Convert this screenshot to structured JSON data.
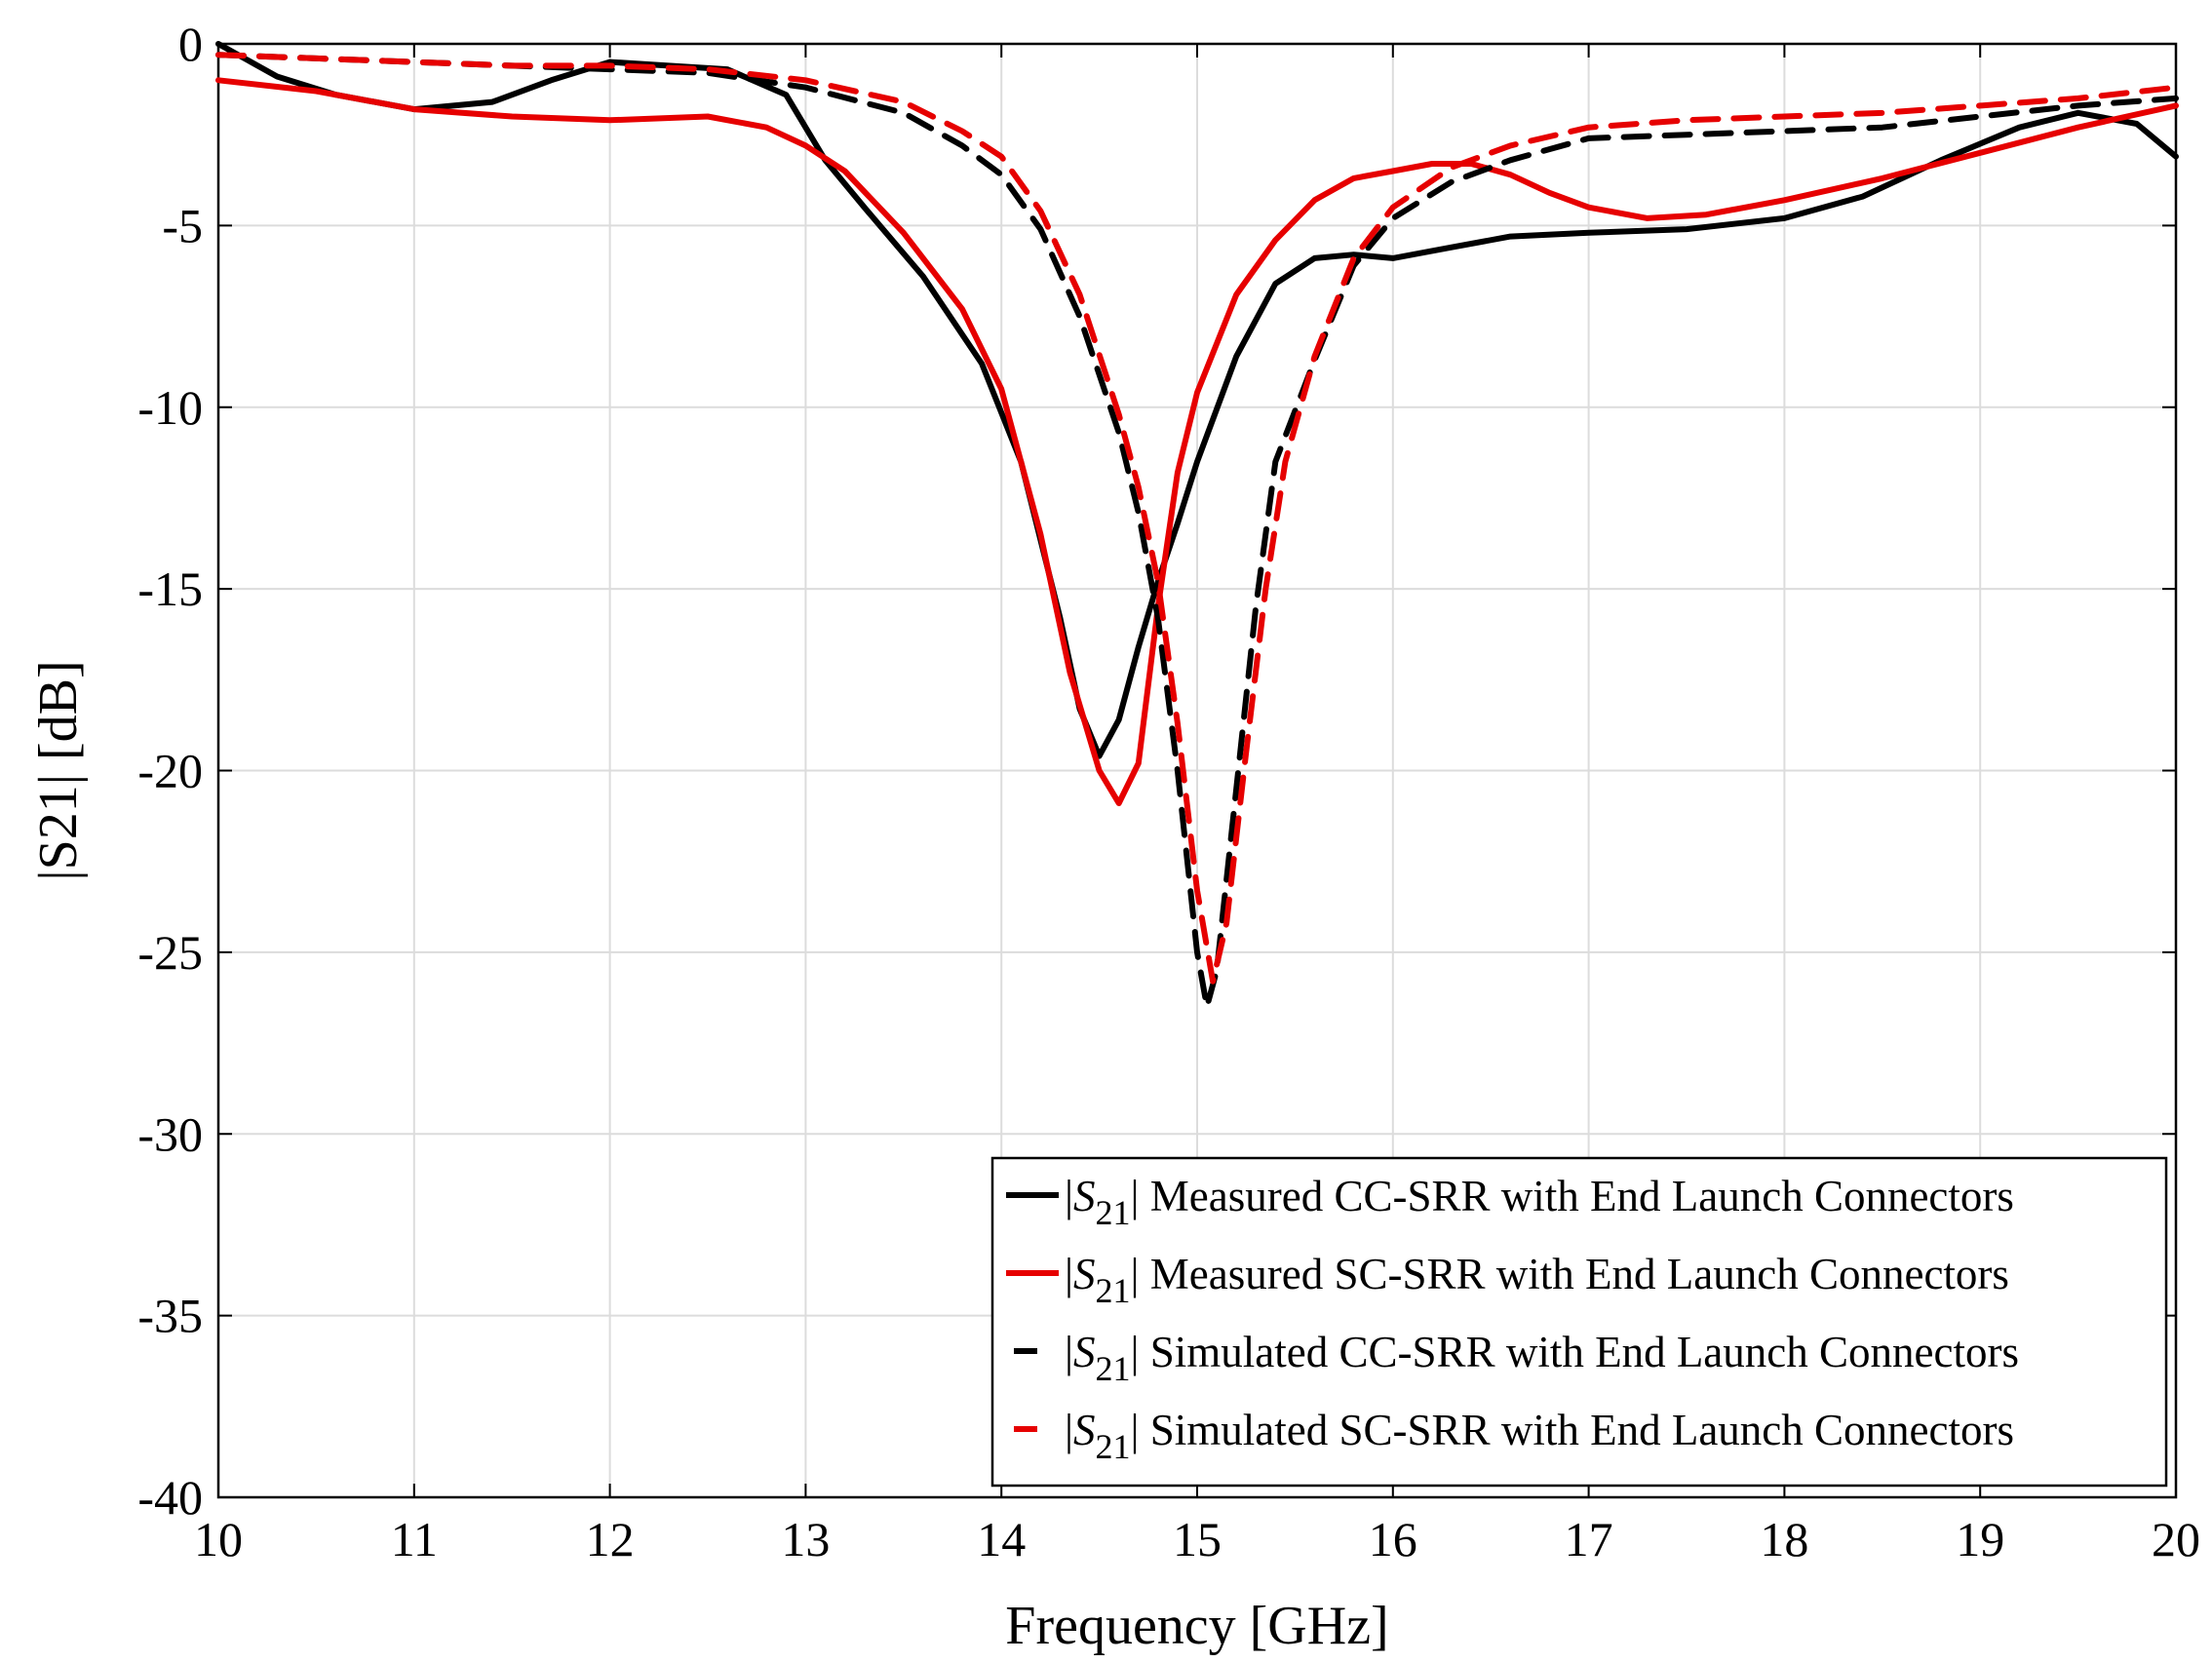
{
  "chart_data": {
    "type": "line",
    "title": "",
    "xlabel": "Frequency [GHz]",
    "ylabel": "|S21| [dB]",
    "xlim": [
      10,
      20
    ],
    "ylim": [
      -40,
      0
    ],
    "xticks": [
      10,
      11,
      12,
      13,
      14,
      15,
      16,
      17,
      18,
      19,
      20
    ],
    "yticks": [
      0,
      -5,
      -10,
      -15,
      -20,
      -25,
      -30,
      -35,
      -40
    ],
    "grid": true,
    "legend_position": "bottom-right",
    "series": [
      {
        "name": "|S21| Measured CC-SRR with End Launch Connectors",
        "legend_pre": "|",
        "legend_sym": "S",
        "legend_sub": "21",
        "legend_post": "| Measured CC-SRR with End Launch Connectors",
        "color": "#000000",
        "dash": "solid",
        "x": [
          10.0,
          10.3,
          10.6,
          11.0,
          11.4,
          11.7,
          12.0,
          12.3,
          12.6,
          12.9,
          13.1,
          13.3,
          13.6,
          13.9,
          14.1,
          14.3,
          14.4,
          14.5,
          14.6,
          14.7,
          14.8,
          14.9,
          15.0,
          15.2,
          15.4,
          15.6,
          15.8,
          16.0,
          16.3,
          16.6,
          17.0,
          17.5,
          18.0,
          18.4,
          18.8,
          19.2,
          19.5,
          19.8,
          20.0
        ],
        "y": [
          0.0,
          -0.9,
          -1.4,
          -1.8,
          -1.6,
          -1.0,
          -0.5,
          -0.6,
          -0.7,
          -1.4,
          -3.2,
          -4.5,
          -6.4,
          -8.8,
          -11.5,
          -15.8,
          -18.3,
          -19.6,
          -18.6,
          -16.6,
          -14.8,
          -13.2,
          -11.5,
          -8.6,
          -6.6,
          -5.9,
          -5.8,
          -5.9,
          -5.6,
          -5.3,
          -5.2,
          -5.1,
          -4.8,
          -4.2,
          -3.2,
          -2.3,
          -1.9,
          -2.2,
          -3.1
        ]
      },
      {
        "name": "|S21| Measured SC-SRR with End Launch Connectors",
        "legend_pre": "|",
        "legend_sym": "S",
        "legend_sub": "21",
        "legend_post": "| Measured SC-SRR with End Launch Connectors",
        "color": "#e60000",
        "dash": "solid",
        "x": [
          10.0,
          10.5,
          11.0,
          11.5,
          12.0,
          12.5,
          12.8,
          13.0,
          13.2,
          13.5,
          13.8,
          14.0,
          14.2,
          14.35,
          14.5,
          14.6,
          14.7,
          14.8,
          14.9,
          15.0,
          15.2,
          15.4,
          15.6,
          15.8,
          16.0,
          16.2,
          16.4,
          16.6,
          16.8,
          17.0,
          17.3,
          17.6,
          18.0,
          18.5,
          19.0,
          19.5,
          20.0
        ],
        "y": [
          -1.0,
          -1.3,
          -1.8,
          -2.0,
          -2.1,
          -2.0,
          -2.3,
          -2.8,
          -3.5,
          -5.2,
          -7.3,
          -9.5,
          -13.5,
          -17.3,
          -20.0,
          -20.9,
          -19.8,
          -15.5,
          -11.8,
          -9.6,
          -6.9,
          -5.4,
          -4.3,
          -3.7,
          -3.5,
          -3.3,
          -3.3,
          -3.6,
          -4.1,
          -4.5,
          -4.8,
          -4.7,
          -4.3,
          -3.7,
          -3.0,
          -2.3,
          -1.7
        ]
      },
      {
        "name": "|S21| Simulated CC-SRR with End Launch Connectors",
        "legend_pre": "|",
        "legend_sym": "S",
        "legend_sub": "21",
        "legend_post": "| Simulated CC-SRR with End Launch Connectors",
        "color": "#000000",
        "dash": "dashed",
        "x": [
          10.0,
          10.5,
          11.0,
          11.5,
          12.0,
          12.5,
          13.0,
          13.5,
          13.8,
          14.0,
          14.2,
          14.4,
          14.6,
          14.7,
          14.8,
          14.9,
          15.0,
          15.05,
          15.1,
          15.2,
          15.3,
          15.4,
          15.6,
          15.8,
          16.0,
          16.3,
          16.6,
          17.0,
          17.5,
          18.0,
          18.5,
          19.0,
          19.5,
          20.0
        ],
        "y": [
          -0.3,
          -0.4,
          -0.5,
          -0.6,
          -0.7,
          -0.8,
          -1.2,
          -1.9,
          -2.8,
          -3.6,
          -5.1,
          -7.5,
          -10.7,
          -12.9,
          -15.8,
          -20.0,
          -25.0,
          -26.5,
          -25.5,
          -20.5,
          -15.5,
          -11.5,
          -8.7,
          -6.1,
          -4.8,
          -3.8,
          -3.2,
          -2.6,
          -2.5,
          -2.4,
          -2.3,
          -2.0,
          -1.7,
          -1.5
        ]
      },
      {
        "name": "|S21| Simulated SC-SRR with End Launch Connectors",
        "legend_pre": "|",
        "legend_sym": "S",
        "legend_sub": "21",
        "legend_post": "| Simulated SC-SRR with End Launch Connectors",
        "color": "#e60000",
        "dash": "dashed",
        "x": [
          10.0,
          10.5,
          11.0,
          11.5,
          12.0,
          12.5,
          13.0,
          13.5,
          13.8,
          14.0,
          14.2,
          14.4,
          14.6,
          14.7,
          14.8,
          14.9,
          15.0,
          15.08,
          15.15,
          15.25,
          15.35,
          15.45,
          15.6,
          15.8,
          16.0,
          16.3,
          16.6,
          17.0,
          17.5,
          18.0,
          18.5,
          19.0,
          19.5,
          20.0
        ],
        "y": [
          -0.3,
          -0.4,
          -0.5,
          -0.6,
          -0.6,
          -0.7,
          -1.0,
          -1.6,
          -2.4,
          -3.1,
          -4.6,
          -6.9,
          -10.2,
          -12.2,
          -14.8,
          -18.7,
          -23.3,
          -25.8,
          -24.2,
          -19.5,
          -15.0,
          -11.5,
          -8.6,
          -5.9,
          -4.5,
          -3.4,
          -2.8,
          -2.3,
          -2.1,
          -2.0,
          -1.9,
          -1.7,
          -1.5,
          -1.2
        ]
      }
    ]
  }
}
